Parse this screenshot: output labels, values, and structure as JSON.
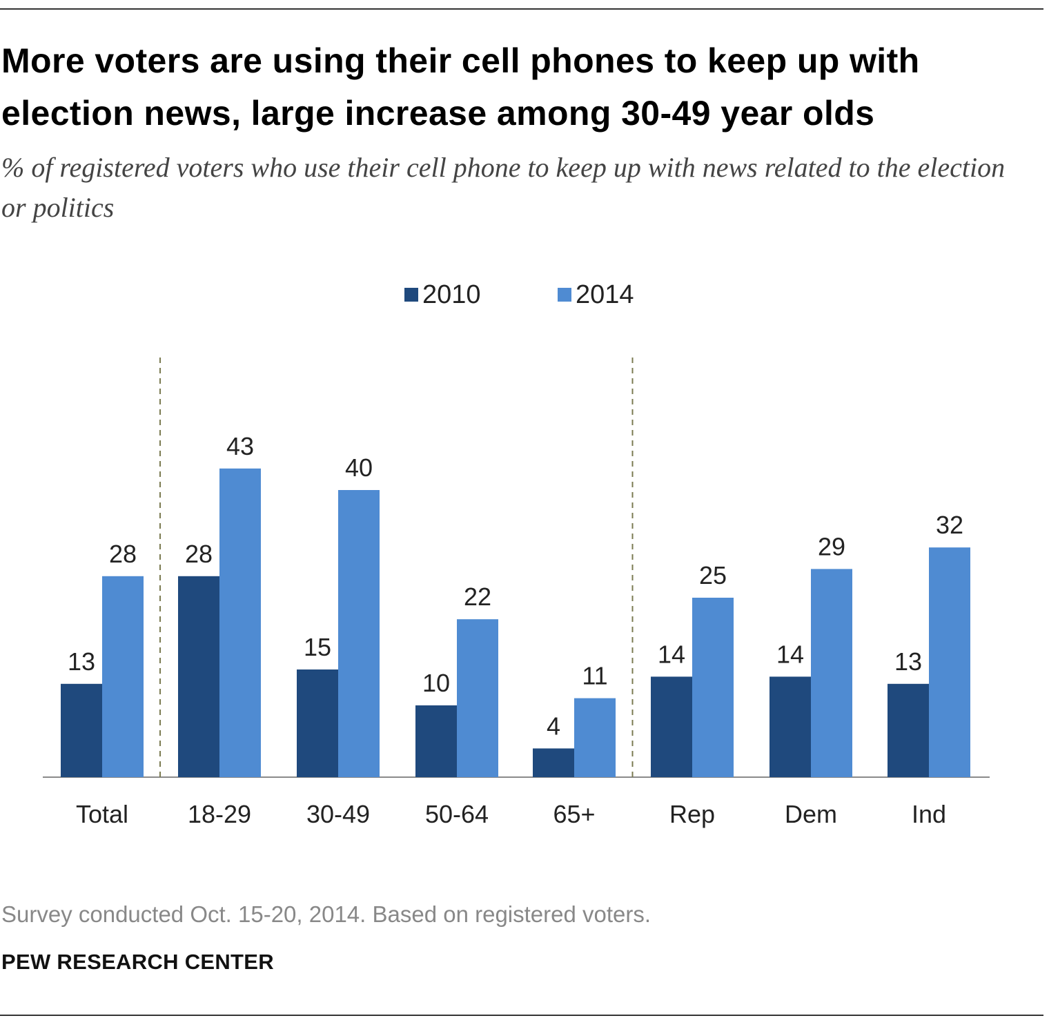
{
  "title": "More voters are using their cell phones to keep up with election news, large increase among 30-49 year olds",
  "subtitle": "% of registered voters who use their cell phone to keep up with news related to the election or politics",
  "note": "Survey conducted Oct. 15-20, 2014. Based on registered voters.",
  "source": "PEW RESEARCH CENTER",
  "colors": {
    "2010": "#1f497d",
    "2014": "#4f8bd2"
  },
  "chart_data": {
    "type": "bar",
    "title": "More voters are using their cell phones to keep up with election news, large increase among 30-49 year olds",
    "subtitle": "% of registered voters who use their cell phone to keep up with news related to the election or politics",
    "categories": [
      "Total",
      "18-29",
      "30-49",
      "50-64",
      "65+",
      "Rep",
      "Dem",
      "Ind"
    ],
    "series": [
      {
        "name": "2010",
        "values": [
          13,
          28,
          15,
          10,
          4,
          14,
          14,
          13
        ]
      },
      {
        "name": "2014",
        "values": [
          28,
          43,
          40,
          22,
          11,
          25,
          29,
          32
        ]
      }
    ],
    "data_labels": true,
    "legend_position": "top-center",
    "grid": false,
    "group_dividers_after": [
      "Total",
      "65+"
    ],
    "xlabel": "",
    "ylabel": ""
  }
}
